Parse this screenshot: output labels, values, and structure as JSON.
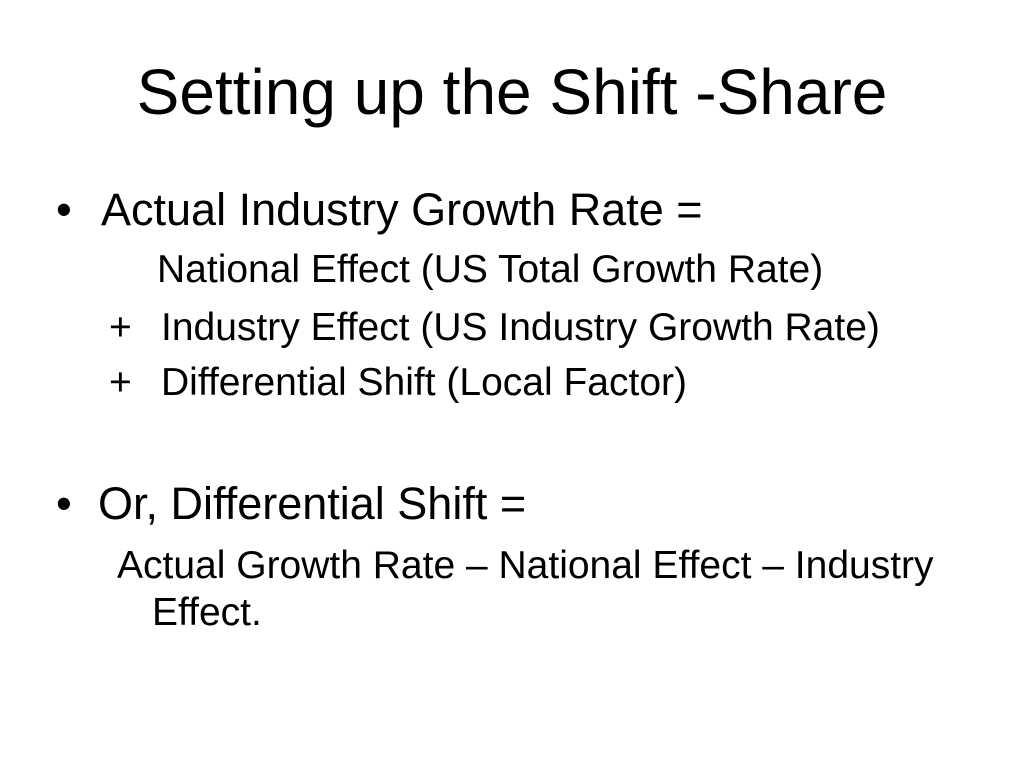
{
  "colors": {
    "background": "#ffffff",
    "text": "#000000"
  },
  "title": "Setting up the Shift -Share",
  "content": {
    "bullet_glyph": "•",
    "plus_glyph": "+",
    "item1": {
      "heading": "Actual Industry Growth Rate =",
      "line1": "National Effect (US Total Growth Rate)",
      "line2": "Industry Effect (US Industry Growth Rate)",
      "line3": "Differential Shift (Local Factor)"
    },
    "item2": {
      "heading": "Or, Differential Shift =",
      "formula_line1": "Actual Growth Rate – National Effect – Industry",
      "formula_line2": "Effect."
    }
  }
}
